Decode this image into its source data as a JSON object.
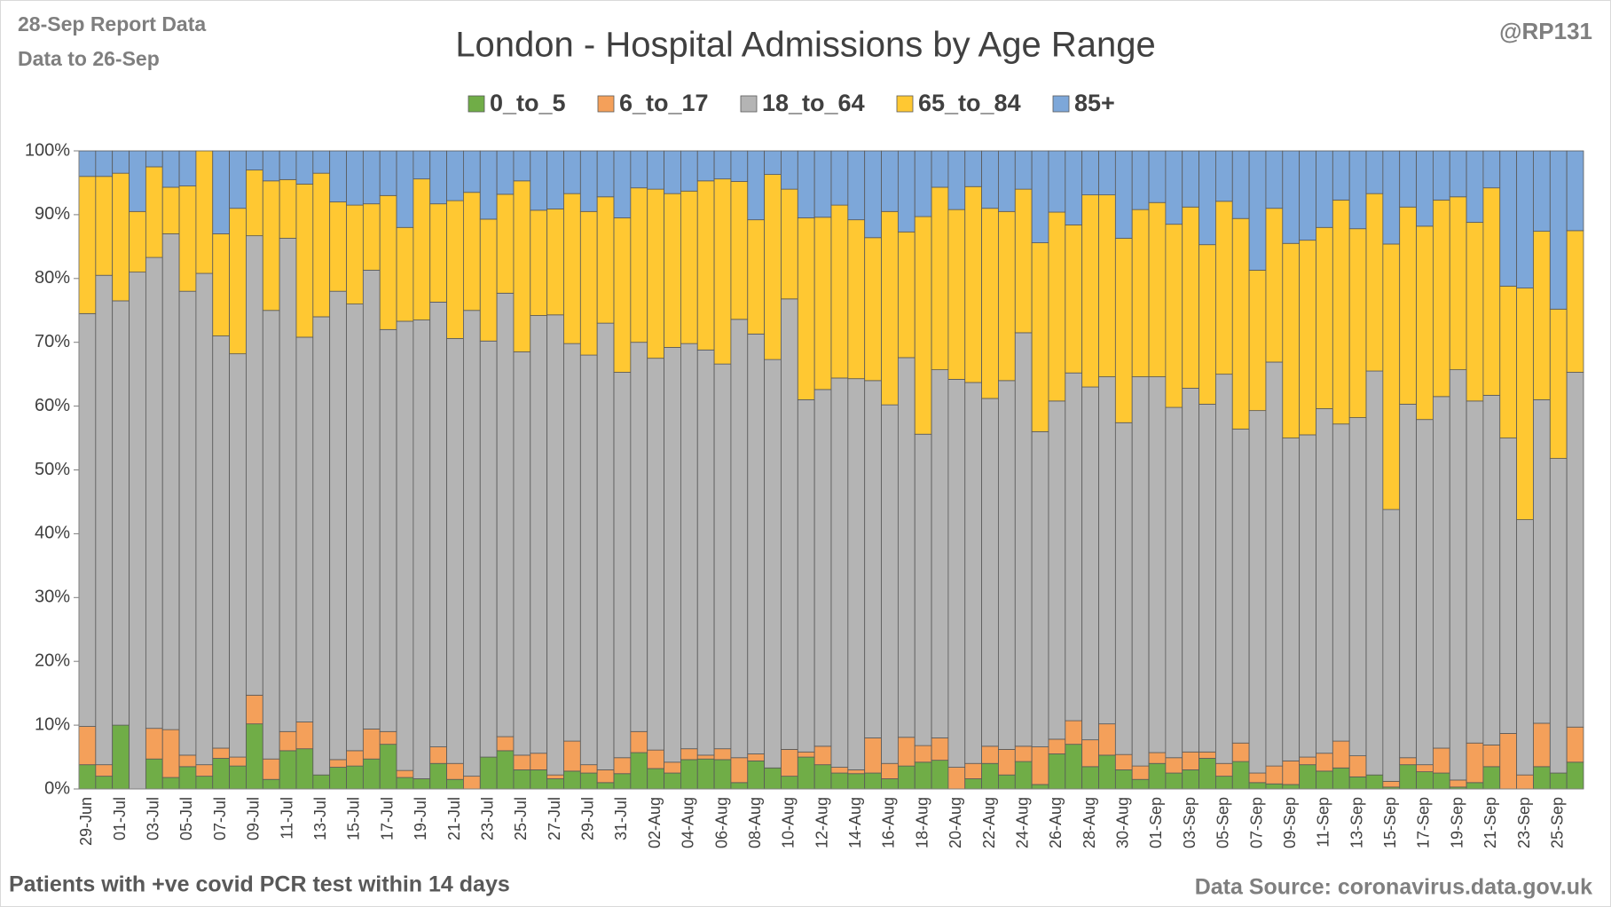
{
  "chart_data": {
    "type": "stacked_bar",
    "title": "London - Hospital Admissions by Age Range",
    "report_note": "28-Sep Report Data",
    "data_note": "Data to 26-Sep",
    "author": "@RP131",
    "footnote": "Patients with  +ve covid PCR test within 14 days",
    "source": "Data Source: coronavirus.data.gov.uk",
    "ylim": [
      0,
      100
    ],
    "yticks": [
      {
        "value": 0,
        "label": "0%"
      },
      {
        "value": 10,
        "label": "10%"
      },
      {
        "value": 20,
        "label": "20%"
      },
      {
        "value": 30,
        "label": "30%"
      },
      {
        "value": 40,
        "label": "40%"
      },
      {
        "value": 50,
        "label": "50%"
      },
      {
        "value": 60,
        "label": "60%"
      },
      {
        "value": 70,
        "label": "70%"
      },
      {
        "value": 80,
        "label": "80%"
      },
      {
        "value": 90,
        "label": "90%"
      },
      {
        "value": 100,
        "label": "100%"
      }
    ],
    "categories": [
      "29-Jun",
      null,
      "01-Jul",
      null,
      "03-Jul",
      null,
      "05-Jul",
      null,
      "07-Jul",
      null,
      "09-Jul",
      null,
      "11-Jul",
      null,
      "13-Jul",
      null,
      "15-Jul",
      null,
      "17-Jul",
      null,
      "19-Jul",
      null,
      "21-Jul",
      null,
      "23-Jul",
      null,
      "25-Jul",
      null,
      "27-Jul",
      null,
      "29-Jul",
      null,
      "31-Jul",
      null,
      "02-Aug",
      null,
      "04-Aug",
      null,
      "06-Aug",
      null,
      "08-Aug",
      null,
      "10-Aug",
      null,
      "12-Aug",
      null,
      "14-Aug",
      null,
      "16-Aug",
      null,
      "18-Aug",
      null,
      "20-Aug",
      null,
      "22-Aug",
      null,
      "24-Aug",
      null,
      "26-Aug",
      null,
      "28-Aug",
      null,
      "30-Aug",
      null,
      "01-Sep",
      null,
      "03-Sep",
      null,
      "05-Sep",
      null,
      "07-Sep",
      null,
      "09-Sep",
      null,
      "11-Sep",
      null,
      "13-Sep",
      null,
      "15-Sep",
      null,
      "17-Sep",
      null,
      "19-Sep",
      null,
      "21-Sep",
      null,
      "23-Sep",
      null,
      "25-Sep",
      null
    ],
    "series": [
      {
        "name": "0_to_5",
        "color": "#70ad47",
        "values": [
          3.8,
          2.0,
          10.0,
          0,
          4.7,
          1.8,
          3.5,
          2.0,
          4.8,
          3.6,
          10.2,
          1.5,
          6.0,
          6.3,
          2.2,
          3.4,
          3.6,
          4.7,
          7.0,
          1.8,
          1.6,
          4.0,
          1.5,
          0,
          5.0,
          6.0,
          3.0,
          3.0,
          1.6,
          2.8,
          2.5,
          1.0,
          2.4,
          5.7,
          3.2,
          2.5,
          4.6,
          4.7,
          4.6,
          1.0,
          4.4,
          3.3,
          2.0,
          5.0,
          3.8,
          2.5,
          2.4,
          2.5,
          1.6,
          3.6,
          4.2,
          4.5,
          0,
          1.6,
          4.0,
          2.2,
          4.3,
          0.7,
          5.5,
          7.0,
          3.5,
          5.3,
          3.0,
          1.5,
          4.0,
          2.5,
          3.0,
          4.8,
          2.0,
          4.3,
          1.0,
          0.8,
          0.7,
          3.8,
          2.8,
          3.3,
          1.9,
          2.2,
          0.3,
          3.8,
          2.7,
          2.5,
          0.3,
          1.0,
          3.5,
          0,
          0,
          3.5,
          2.5,
          4.2
        ]
      },
      {
        "name": "6_to_17",
        "color": "#f4a05a",
        "values": [
          6.0,
          1.8,
          0,
          0,
          4.8,
          7.5,
          1.8,
          1.8,
          1.6,
          1.4,
          4.5,
          3.2,
          3.0,
          4.2,
          0,
          1.2,
          2.4,
          4.7,
          2.0,
          1.1,
          0,
          2.6,
          2.5,
          2.0,
          0,
          2.2,
          2.3,
          2.6,
          0.6,
          4.7,
          1.3,
          2.0,
          2.5,
          3.3,
          2.9,
          1.7,
          1.7,
          0.6,
          1.7,
          3.9,
          1.1,
          0,
          4.2,
          0.8,
          2.9,
          0.9,
          0.6,
          5.5,
          2.4,
          4.5,
          2.6,
          3.5,
          3.4,
          2.4,
          2.7,
          4.0,
          2.4,
          5.9,
          2.3,
          3.7,
          4.2,
          4.9,
          2.4,
          2.1,
          1.7,
          2.4,
          2.8,
          1.0,
          2.0,
          2.9,
          1.5,
          2.8,
          3.7,
          1.2,
          2.8,
          4.2,
          3.3,
          0,
          0.9,
          1.1,
          1.1,
          3.9,
          1.1,
          6.2,
          3.4,
          8.7,
          2.2,
          6.8,
          0,
          5.5
        ]
      },
      {
        "name": "18_to_64",
        "color": "#b4b4b4",
        "values": [
          64.7,
          76.7,
          66.5,
          81.0,
          73.8,
          77.7,
          72.7,
          77.0,
          64.6,
          63.2,
          72.0,
          70.3,
          77.3,
          60.3,
          71.8,
          73.4,
          70.0,
          71.9,
          63.0,
          70.4,
          71.9,
          69.7,
          66.6,
          73.0,
          65.2,
          69.5,
          63.2,
          68.6,
          72.1,
          62.3,
          64.2,
          70.0,
          60.4,
          61.0,
          61.4,
          65.0,
          63.5,
          63.5,
          60.3,
          68.7,
          65.8,
          64.0,
          70.6,
          55.2,
          55.9,
          61.0,
          61.3,
          56.0,
          56.2,
          59.5,
          48.8,
          57.7,
          60.8,
          59.7,
          54.5,
          57.8,
          64.8,
          49.4,
          53.0,
          54.5,
          55.3,
          54.4,
          52.0,
          61.0,
          58.9,
          54.9,
          57.0,
          54.5,
          61.0,
          49.2,
          56.8,
          63.3,
          50.6,
          50.5,
          54.0,
          49.7,
          53.0,
          63.3,
          42.6,
          55.4,
          54.1,
          55.1,
          64.3,
          53.6,
          54.8,
          46.3,
          40.0,
          50.7,
          49.3,
          55.6
        ]
      },
      {
        "name": "65_to_84",
        "color": "#ffc832",
        "values": [
          21.5,
          15.5,
          20.0,
          9.5,
          14.2,
          7.3,
          16.5,
          19.2,
          16.0,
          22.8,
          10.3,
          20.3,
          9.2,
          24.0,
          22.5,
          14.0,
          15.5,
          10.4,
          21.0,
          14.7,
          22.1,
          15.4,
          21.6,
          18.5,
          19.1,
          15.5,
          26.8,
          16.5,
          16.6,
          23.5,
          22.5,
          19.8,
          24.2,
          24.2,
          26.5,
          24.1,
          23.9,
          26.5,
          29.0,
          21.6,
          17.9,
          29.0,
          17.2,
          28.5,
          27.0,
          27.1,
          24.9,
          22.4,
          30.3,
          19.7,
          34.1,
          28.6,
          26.6,
          30.7,
          29.8,
          26.5,
          22.5,
          29.6,
          29.6,
          23.2,
          30.1,
          28.5,
          28.9,
          26.2,
          27.3,
          28.7,
          28.4,
          25.0,
          27.1,
          33.0,
          22.0,
          24.1,
          30.5,
          30.5,
          28.4,
          35.1,
          29.6,
          27.8,
          41.6,
          30.9,
          30.3,
          30.8,
          27.1,
          28.0,
          32.5,
          23.8,
          36.3,
          26.4,
          23.4,
          22.2
        ]
      },
      {
        "name": "85+",
        "color": "#7da7d9",
        "values": [
          4.0,
          4.0,
          3.5,
          9.5,
          2.5,
          5.7,
          5.5,
          0,
          13.0,
          9.0,
          3.0,
          4.7,
          4.5,
          5.2,
          3.5,
          8.0,
          8.5,
          8.3,
          7.0,
          12.0,
          4.4,
          8.3,
          7.8,
          6.5,
          10.7,
          6.8,
          4.7,
          9.3,
          9.1,
          6.7,
          9.5,
          7.2,
          10.5,
          5.8,
          6.0,
          6.7,
          6.3,
          4.7,
          4.4,
          4.8,
          10.8,
          3.7,
          6.0,
          10.5,
          10.4,
          8.5,
          10.8,
          13.6,
          9.5,
          12.7,
          10.3,
          5.7,
          9.2,
          5.6,
          9.0,
          9.5,
          6.0,
          14.4,
          9.6,
          11.6,
          6.9,
          6.9,
          13.7,
          9.2,
          8.1,
          11.5,
          8.8,
          14.7,
          7.9,
          10.6,
          18.7,
          9.0,
          14.5,
          14.0,
          12.0,
          7.7,
          12.2,
          6.7,
          14.6,
          8.8,
          11.8,
          7.7,
          7.2,
          11.2,
          5.8,
          21.2,
          21.5,
          12.6,
          24.8,
          12.5
        ]
      }
    ]
  }
}
